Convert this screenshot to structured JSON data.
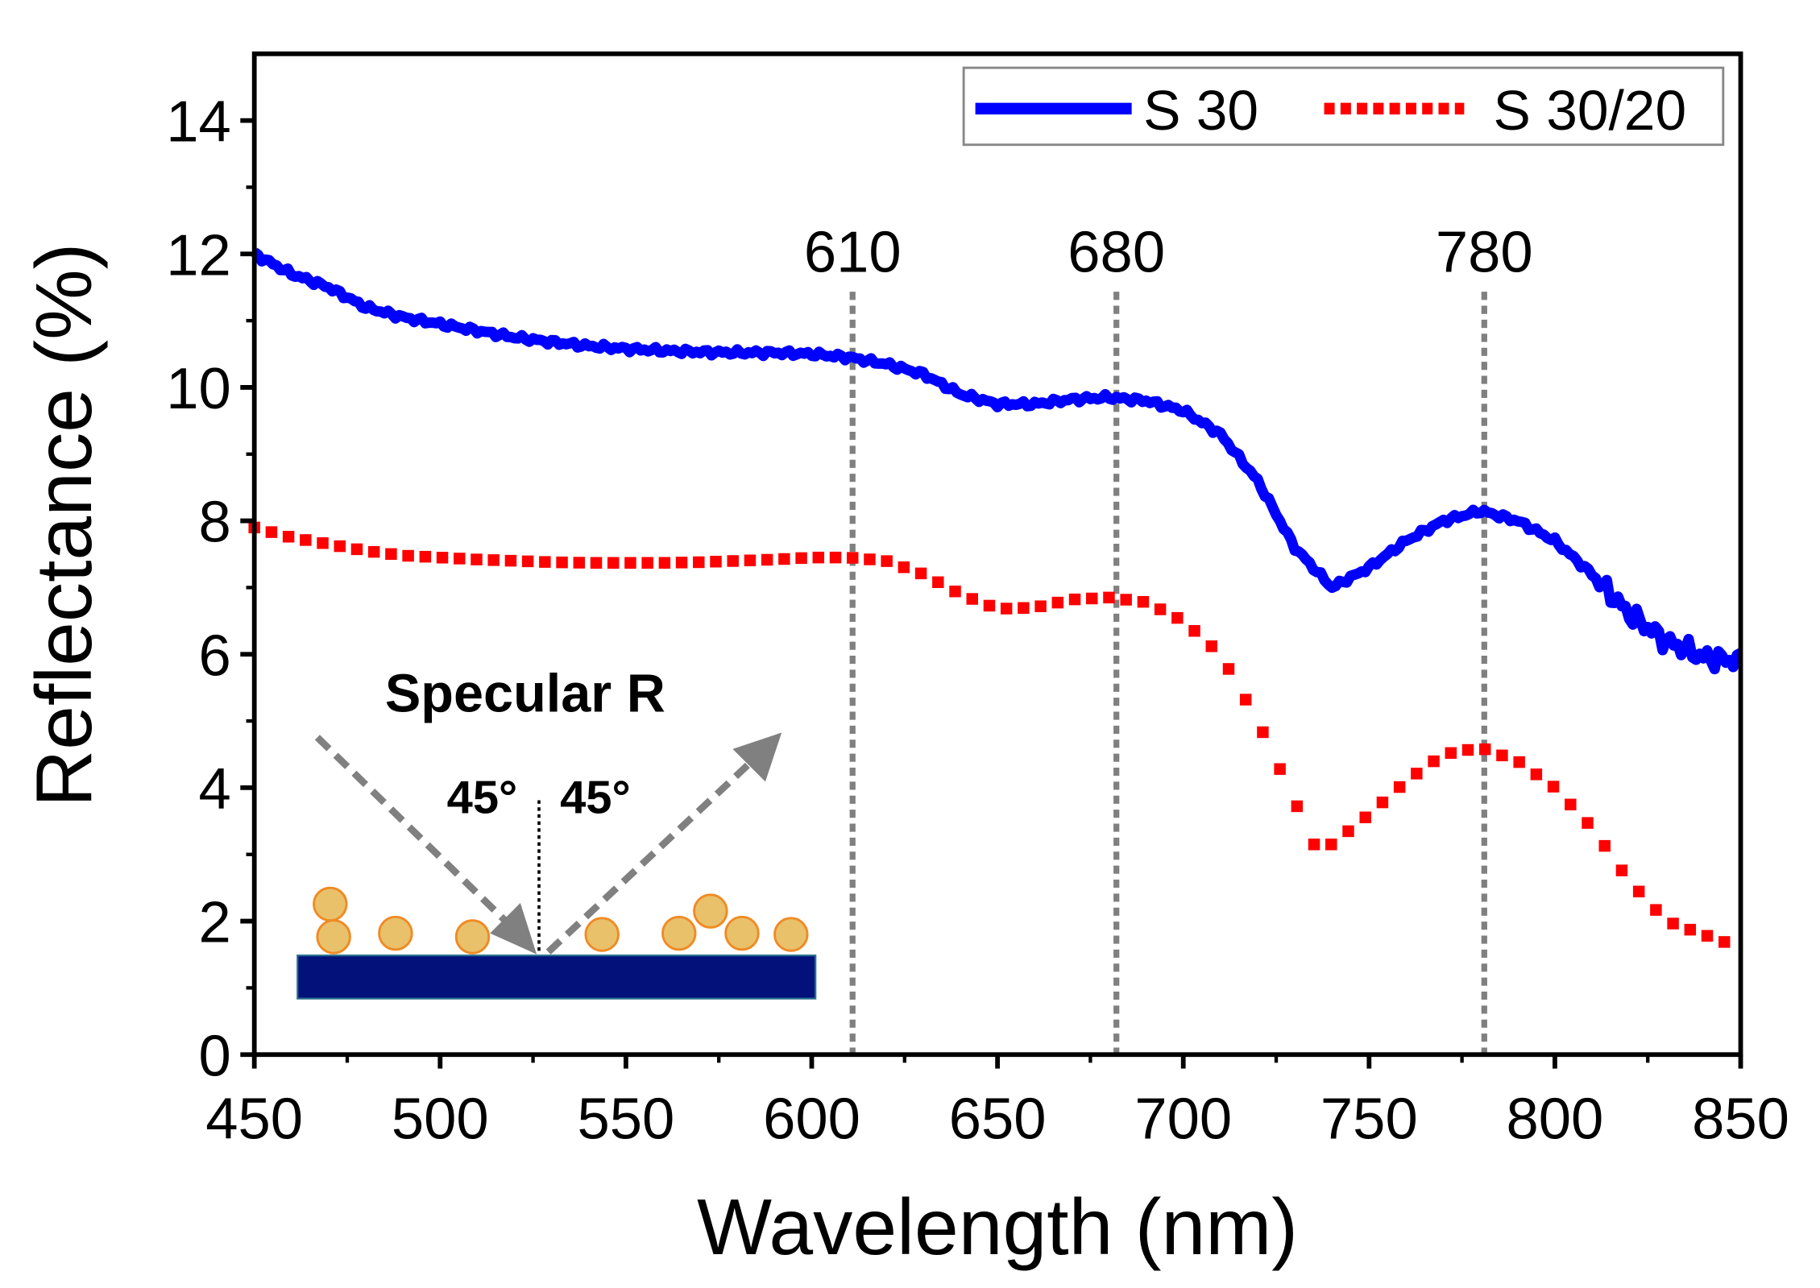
{
  "chart_data": {
    "type": "line",
    "title": "",
    "xlabel": "Wavelength (nm)",
    "ylabel": "Reflectance (%)",
    "xlim": [
      450,
      850
    ],
    "ylim": [
      0,
      15
    ],
    "xticks": [
      450,
      500,
      550,
      600,
      650,
      700,
      750,
      800,
      850
    ],
    "yticks": [
      0,
      2,
      4,
      6,
      8,
      10,
      12,
      14
    ],
    "grid": false,
    "legend_position": "top-right",
    "series": [
      {
        "name": "S 30",
        "color": "#0000ff",
        "style": "solid",
        "x": [
          450,
          460,
          470,
          480,
          490,
          500,
          510,
          520,
          530,
          540,
          550,
          560,
          570,
          580,
          590,
          600,
          610,
          620,
          630,
          640,
          650,
          660,
          670,
          680,
          690,
          700,
          710,
          720,
          730,
          740,
          750,
          760,
          770,
          780,
          790,
          800,
          810,
          820,
          830,
          840,
          850
        ],
        "y": [
          12.0,
          11.7,
          11.5,
          11.2,
          11.05,
          10.95,
          10.85,
          10.75,
          10.68,
          10.62,
          10.58,
          10.55,
          10.53,
          10.52,
          10.52,
          10.5,
          10.45,
          10.35,
          10.2,
          9.9,
          9.75,
          9.75,
          9.82,
          9.85,
          9.8,
          9.65,
          9.3,
          8.6,
          7.6,
          7.0,
          7.3,
          7.7,
          8.0,
          8.15,
          8.0,
          7.7,
          7.2,
          6.6,
          6.2,
          5.95,
          5.9
        ]
      },
      {
        "name": "S 30/20",
        "color": "#ff0000",
        "style": "dotted",
        "x": [
          450,
          460,
          470,
          480,
          490,
          500,
          510,
          520,
          530,
          540,
          550,
          560,
          570,
          580,
          590,
          600,
          610,
          620,
          630,
          640,
          650,
          660,
          670,
          680,
          690,
          700,
          710,
          720,
          730,
          735,
          740,
          750,
          760,
          770,
          780,
          790,
          800,
          810,
          820,
          830,
          840,
          850
        ],
        "y": [
          7.9,
          7.75,
          7.65,
          7.55,
          7.48,
          7.45,
          7.42,
          7.4,
          7.38,
          7.37,
          7.37,
          7.37,
          7.38,
          7.4,
          7.42,
          7.45,
          7.45,
          7.4,
          7.2,
          6.9,
          6.68,
          6.7,
          6.82,
          6.85,
          6.78,
          6.5,
          6.0,
          5.0,
          3.8,
          3.15,
          3.15,
          3.6,
          4.1,
          4.5,
          4.6,
          4.4,
          4.0,
          3.4,
          2.6,
          2.0,
          1.8,
          1.6
        ]
      }
    ],
    "reference_lines": [
      {
        "x": 611,
        "label": "610"
      },
      {
        "x": 682,
        "label": "680"
      },
      {
        "x": 781,
        "label": "780"
      }
    ],
    "inset": {
      "title": "Specular R",
      "angle_in": "45°",
      "angle_out": "45°"
    }
  }
}
